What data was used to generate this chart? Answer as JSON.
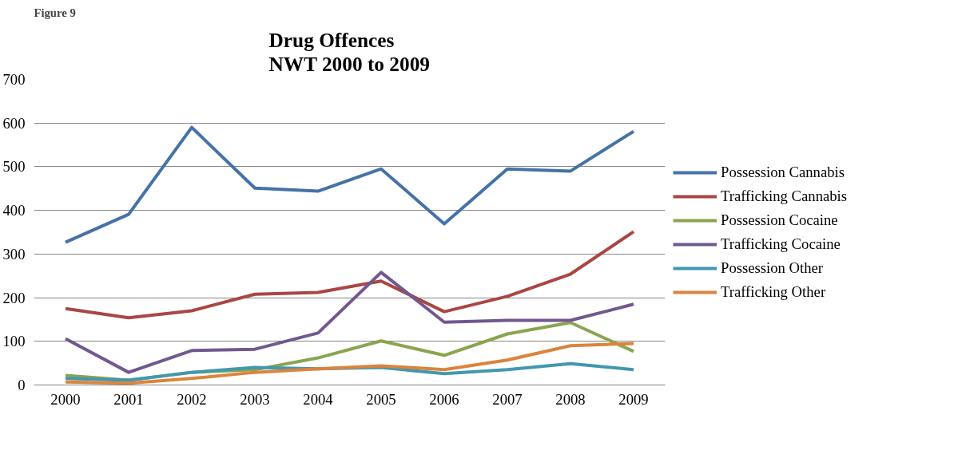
{
  "chart_data": {
    "type": "line",
    "title": "Drug Offences\nNWT 2000 to 2009",
    "annotations": [
      "Figure 9"
    ],
    "categories": [
      "2000",
      "2001",
      "2002",
      "2003",
      "2004",
      "2005",
      "2006",
      "2007",
      "2008",
      "2009"
    ],
    "ylim": [
      0,
      700
    ],
    "yticks": [
      0,
      100,
      200,
      300,
      400,
      500,
      600,
      700
    ],
    "grid": "y",
    "legend": "right",
    "marker": "none",
    "line_style": "solid",
    "series": [
      {
        "name": "Possession Cannabis",
        "color": "#4572a7",
        "values": [
          327,
          391,
          590,
          451,
          444,
          495,
          369,
          495,
          490,
          581
        ]
      },
      {
        "name": "Trafficking Cannabis",
        "color": "#aa4643",
        "values": [
          175,
          154,
          170,
          208,
          212,
          238,
          168,
          203,
          254,
          351
        ]
      },
      {
        "name": "Possession Cocaine",
        "color": "#89a54e",
        "values": [
          22,
          11,
          29,
          35,
          62,
          101,
          68,
          117,
          143,
          77
        ]
      },
      {
        "name": "Trafficking Cocaine",
        "color": "#71588f",
        "values": [
          106,
          29,
          79,
          82,
          119,
          258,
          144,
          148,
          148,
          185
        ]
      },
      {
        "name": "Possession Other",
        "color": "#4198af",
        "values": [
          15,
          11,
          29,
          40,
          37,
          40,
          26,
          35,
          49,
          35
        ]
      },
      {
        "name": "Trafficking Other",
        "color": "#db843d",
        "values": [
          7,
          4,
          15,
          29,
          37,
          44,
          35,
          57,
          90,
          95
        ]
      }
    ]
  }
}
